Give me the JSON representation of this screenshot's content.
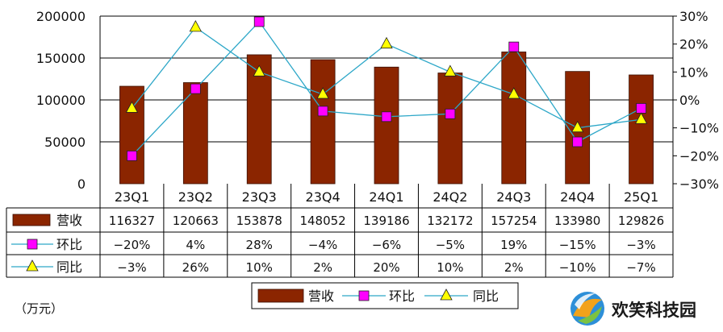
{
  "chart_data": {
    "type": "bar",
    "categories": [
      "23Q1",
      "23Q2",
      "23Q3",
      "23Q4",
      "24Q1",
      "24Q2",
      "24Q3",
      "24Q4",
      "25Q1"
    ],
    "series": [
      {
        "name": "营收",
        "type": "bar",
        "axis": "left",
        "color": "#8B2500",
        "values": [
          116327,
          120663,
          153878,
          148052,
          139186,
          132172,
          157254,
          133980,
          129826
        ]
      },
      {
        "name": "环比",
        "type": "line",
        "axis": "right",
        "color": "#FF00FF",
        "line_color": "#2DA7C8",
        "marker": "square",
        "values": [
          -20,
          4,
          28,
          -4,
          -6,
          -5,
          19,
          -15,
          -3
        ]
      },
      {
        "name": "同比",
        "type": "line",
        "axis": "right",
        "color": "#FFFF00",
        "line_color": "#2DA7C8",
        "marker": "triangle",
        "values": [
          -3,
          26,
          10,
          2,
          20,
          10,
          2,
          -10,
          -7
        ]
      }
    ],
    "table_rows": [
      [
        "116327",
        "120663",
        "153878",
        "148052",
        "139186",
        "132172",
        "157254",
        "133980",
        "129826"
      ],
      [
        "−20%",
        "4%",
        "28%",
        "−4%",
        "−6%",
        "−5%",
        "19%",
        "−15%",
        "−3%"
      ],
      [
        "−3%",
        "26%",
        "10%",
        "2%",
        "20%",
        "10%",
        "2%",
        "−10%",
        "−7%"
      ]
    ],
    "ylim": [
      0,
      200000
    ],
    "yticks": [
      "0",
      "50000",
      "100000",
      "150000",
      "200000"
    ],
    "y2lim": [
      -30,
      30
    ],
    "y2ticks": [
      "−30%",
      "−20%",
      "−10%",
      "0%",
      "10%",
      "20%",
      "30%"
    ],
    "grid": true,
    "legend_position": "bottom",
    "unit_label": "（万元）"
  },
  "watermark": {
    "text": "欢笑科技园"
  }
}
